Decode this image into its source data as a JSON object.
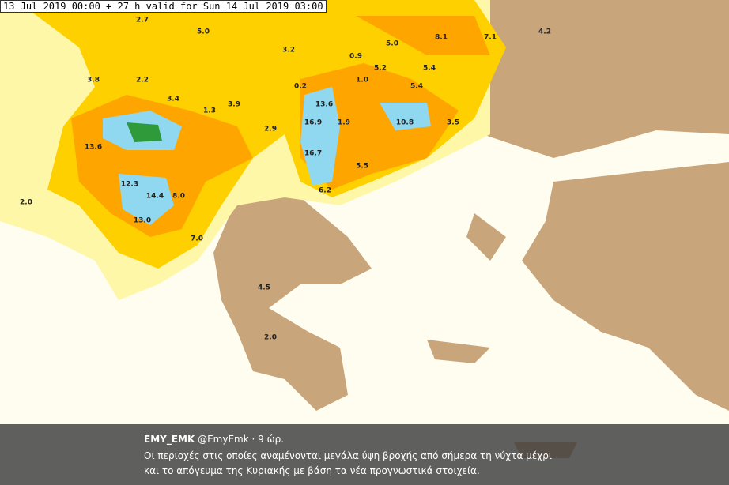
{
  "header": {
    "title": "13 Jul 2019 00:00 + 27 h valid for Sun 14 Jul 2019 03:00"
  },
  "map": {
    "labels": [
      "2.7",
      "5.0",
      "3.2",
      "5.0",
      "8.1",
      "7.1",
      "4.2",
      "0.9",
      "5.2",
      "5.4",
      "3.8",
      "2.2",
      "0.2",
      "1.0",
      "5.4",
      "3.4",
      "3.9",
      "1.3",
      "13.6",
      "16.9",
      "1.9",
      "10.8",
      "3.5",
      "2.9",
      "13.6",
      "16.7",
      "5.5",
      "12.3",
      "14.4",
      "8.0",
      "6.2",
      "2.0",
      "13.0",
      "7.0",
      "4.5",
      "2.0"
    ]
  },
  "tweet": {
    "author": "EMY_EMK",
    "handle": "@EmyEmk",
    "time": "· 9 ώρ.",
    "text": [
      "Οι περιοχές στις οποίες αναμένονται μεγάλα ύψη βροχής από σήμερα τη νύχτα μέχρι",
      "και το απόγευμα της Κυριακής με βάση τα νέα προγνωστικά στοιχεία."
    ]
  }
}
